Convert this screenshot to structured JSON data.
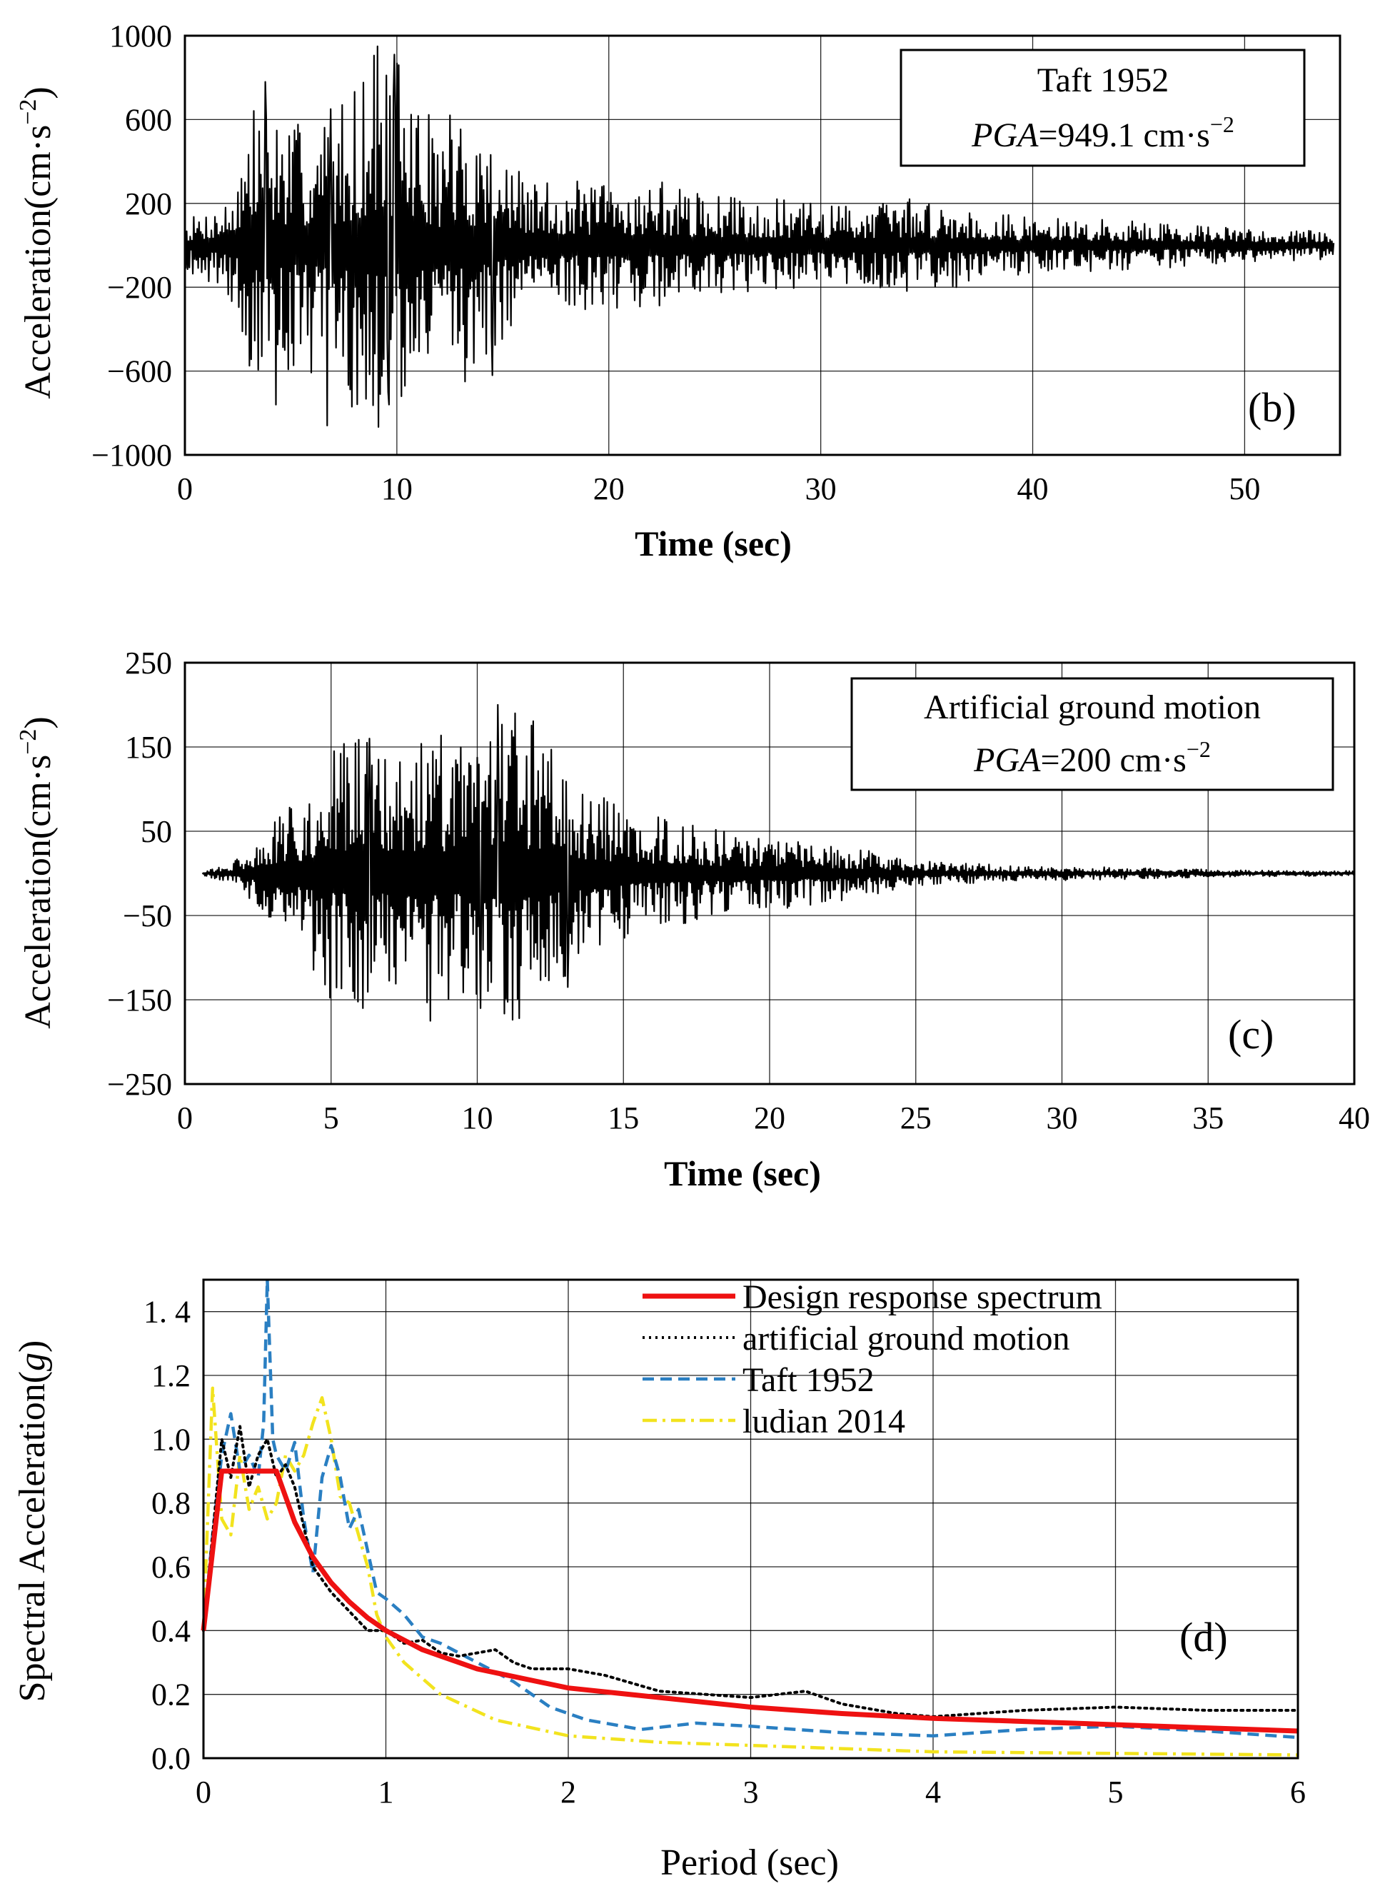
{
  "figure": {
    "panels": {
      "b": {
        "tag": "(b)",
        "legend_line1": "Taft  1952",
        "legend_pga_italic": "PGA",
        "legend_pga_value": "=949.1 cm·s",
        "legend_pga_exp": "−2",
        "xlabel": "Time (sec)",
        "ylabel": "Acceleration(cm·s",
        "ylabel_exp": "−2",
        "ylabel_close": ")",
        "xticks": [
          "0",
          "10",
          "20",
          "30",
          "40",
          "50"
        ],
        "yticks": [
          "1000",
          "600",
          "200",
          "−200",
          "−600",
          "−1000"
        ]
      },
      "c": {
        "tag": "(c)",
        "legend_line1": "Artificial ground motion",
        "legend_pga_italic": "PGA",
        "legend_pga_value": "=200 cm·s",
        "legend_pga_exp": "−2",
        "xlabel": "Time (sec)",
        "ylabel": "Acceleration(cm·s",
        "ylabel_exp": "−2",
        "ylabel_close": ")",
        "xticks": [
          "0",
          "5",
          "10",
          "15",
          "20",
          "25",
          "30",
          "35",
          "40"
        ],
        "yticks": [
          "250",
          "150",
          "50",
          "−50",
          "−150",
          "−250"
        ]
      },
      "d": {
        "tag": "(d)",
        "xlabel": "Period (sec)",
        "ylabel": "Spectral Acceleration(",
        "ylabel_italic": "g",
        "ylabel_close": ")",
        "xticks": [
          "0",
          "1",
          "2",
          "3",
          "4",
          "5",
          "6"
        ],
        "yticks": [
          "1. 4",
          "1.2",
          "1.0",
          "0.8",
          "0.6",
          "0.4",
          "0.2",
          "0.0"
        ]
      }
    }
  },
  "chart_data": [
    {
      "panel": "b",
      "type": "line",
      "xlabel": "Time (sec)",
      "ylabel": "Acceleration(cm·s−2)",
      "xlim": [
        0,
        54.5
      ],
      "ylim": [
        -1000,
        1000
      ],
      "grid": true,
      "legend_placement": "top-right",
      "series": [
        {
          "name": "Taft 1952",
          "color": "#000000",
          "envelope": [
            [
              0,
              120
            ],
            [
              2,
              220
            ],
            [
              3.5,
              780
            ],
            [
              5,
              580
            ],
            [
              7,
              650
            ],
            [
              9,
              949.1
            ],
            [
              10,
              900
            ],
            [
              12,
              560
            ],
            [
              14,
              600
            ],
            [
              16,
              320
            ],
            [
              20,
              300
            ],
            [
              22.5,
              300
            ],
            [
              24,
              250
            ],
            [
              28,
              220
            ],
            [
              30,
              200
            ],
            [
              34,
              220
            ],
            [
              36,
              200
            ],
            [
              40,
              130
            ],
            [
              45,
              120
            ],
            [
              50,
              80
            ],
            [
              54,
              70
            ]
          ],
          "peaks": [
            [
              3.8,
              780
            ],
            [
              4.3,
              -760
            ],
            [
              6.7,
              -860
            ],
            [
              6.9,
              650
            ],
            [
              9.1,
              949.1
            ],
            [
              9.6,
              -700
            ],
            [
              9.9,
              910
            ],
            [
              12.5,
              620
            ],
            [
              13.2,
              -650
            ],
            [
              14.5,
              -620
            ],
            [
              19.2,
              -280
            ],
            [
              22.5,
              300
            ],
            [
              34.2,
              220
            ],
            [
              36.4,
              -200
            ]
          ]
        }
      ]
    },
    {
      "panel": "c",
      "type": "line",
      "xlabel": "Time (sec)",
      "ylabel": "Acceleration(cm·s−2)",
      "xlim": [
        0,
        40
      ],
      "ylim": [
        -250,
        250
      ],
      "grid": true,
      "legend_placement": "top-right",
      "series": [
        {
          "name": "Artificial ground motion",
          "color": "#000000",
          "envelope": [
            [
              0.6,
              3
            ],
            [
              1.5,
              10
            ],
            [
              2.2,
              30
            ],
            [
              3,
              60
            ],
            [
              4,
              95
            ],
            [
              5,
              150
            ],
            [
              6,
              160
            ],
            [
              7,
              150
            ],
            [
              8.5,
              170
            ],
            [
              10,
              150
            ],
            [
              11,
              200
            ],
            [
              12,
              180
            ],
            [
              13.5,
              110
            ],
            [
              15,
              80
            ],
            [
              17,
              60
            ],
            [
              20,
              45
            ],
            [
              23,
              30
            ],
            [
              25,
              15
            ],
            [
              28,
              10
            ],
            [
              32,
              7
            ],
            [
              36,
              4
            ],
            [
              40,
              3
            ]
          ],
          "peaks": [
            [
              5.1,
              145
            ],
            [
              6.1,
              -160
            ],
            [
              6.3,
              160
            ],
            [
              8.4,
              -175
            ],
            [
              10.7,
              200
            ],
            [
              10.1,
              -160
            ],
            [
              11.3,
              190
            ],
            [
              13.1,
              -135
            ]
          ]
        }
      ]
    },
    {
      "panel": "d",
      "type": "line",
      "xlabel": "Period (sec)",
      "ylabel": "Spectral Acceleration(g)",
      "xlim": [
        0,
        6
      ],
      "ylim": [
        0,
        1.5
      ],
      "grid": true,
      "legend_placement": "top-right",
      "series": [
        {
          "name": "Design response spectrum",
          "color": "#ee1111",
          "style": "solid",
          "x": [
            0,
            0.1,
            0.4,
            0.5,
            0.6,
            0.7,
            0.8,
            0.9,
            1.0,
            1.2,
            1.5,
            2.0,
            2.5,
            3.0,
            3.5,
            4.0,
            4.5,
            5.0,
            5.5,
            6.0
          ],
          "y": [
            0.4,
            0.9,
            0.9,
            0.74,
            0.63,
            0.55,
            0.49,
            0.44,
            0.4,
            0.34,
            0.28,
            0.22,
            0.19,
            0.16,
            0.14,
            0.125,
            0.115,
            0.105,
            0.095,
            0.085
          ]
        },
        {
          "name": "artificial ground motion",
          "color": "#000000",
          "style": "dotted",
          "x": [
            0,
            0.05,
            0.1,
            0.15,
            0.2,
            0.25,
            0.3,
            0.35,
            0.4,
            0.45,
            0.5,
            0.6,
            0.7,
            0.8,
            0.9,
            1.0,
            1.1,
            1.2,
            1.3,
            1.4,
            1.5,
            1.6,
            1.7,
            1.8,
            2.0,
            2.2,
            2.5,
            3.0,
            3.3,
            3.5,
            3.8,
            4.0,
            4.5,
            5.0,
            5.5,
            6.0
          ],
          "y": [
            0.4,
            0.7,
            1.0,
            0.88,
            1.04,
            0.85,
            0.95,
            1.0,
            0.88,
            0.92,
            0.85,
            0.6,
            0.52,
            0.46,
            0.4,
            0.4,
            0.36,
            0.37,
            0.33,
            0.32,
            0.33,
            0.34,
            0.3,
            0.28,
            0.28,
            0.26,
            0.21,
            0.19,
            0.21,
            0.17,
            0.14,
            0.13,
            0.15,
            0.16,
            0.15,
            0.15
          ]
        },
        {
          "name": "Taft 1952",
          "color": "#2a7fc2",
          "style": "dashed",
          "x": [
            0,
            0.05,
            0.1,
            0.15,
            0.2,
            0.25,
            0.3,
            0.33,
            0.35,
            0.38,
            0.4,
            0.45,
            0.5,
            0.55,
            0.6,
            0.65,
            0.7,
            0.75,
            0.8,
            0.85,
            0.9,
            0.95,
            1.0,
            1.1,
            1.2,
            1.3,
            1.5,
            1.7,
            1.9,
            2.1,
            2.4,
            2.7,
            3.0,
            3.5,
            4.0,
            4.5,
            5.0,
            5.5,
            6.0
          ],
          "y": [
            0.4,
            0.7,
            0.95,
            1.08,
            0.9,
            0.95,
            0.88,
            1.05,
            1.5,
            1.0,
            0.95,
            0.9,
            0.99,
            0.75,
            0.58,
            0.88,
            0.98,
            0.88,
            0.72,
            0.78,
            0.65,
            0.52,
            0.5,
            0.45,
            0.38,
            0.36,
            0.3,
            0.24,
            0.16,
            0.12,
            0.09,
            0.11,
            0.1,
            0.08,
            0.07,
            0.09,
            0.1,
            0.085,
            0.065
          ]
        },
        {
          "name": "ludian 2014",
          "color": "#f2e31e",
          "style": "dashdot",
          "x": [
            0,
            0.05,
            0.1,
            0.15,
            0.2,
            0.25,
            0.3,
            0.35,
            0.4,
            0.45,
            0.5,
            0.55,
            0.6,
            0.65,
            0.7,
            0.75,
            0.8,
            0.85,
            0.9,
            0.95,
            1.0,
            1.1,
            1.3,
            1.6,
            2.0,
            2.5,
            3.0,
            3.5,
            4.0,
            5.0,
            6.0
          ],
          "y": [
            0.4,
            1.16,
            0.75,
            0.7,
            0.95,
            0.78,
            0.85,
            0.75,
            0.8,
            0.95,
            0.9,
            0.95,
            1.05,
            1.13,
            1.0,
            0.82,
            0.8,
            0.7,
            0.6,
            0.45,
            0.38,
            0.3,
            0.2,
            0.12,
            0.07,
            0.05,
            0.04,
            0.03,
            0.02,
            0.015,
            0.01
          ]
        }
      ]
    }
  ]
}
